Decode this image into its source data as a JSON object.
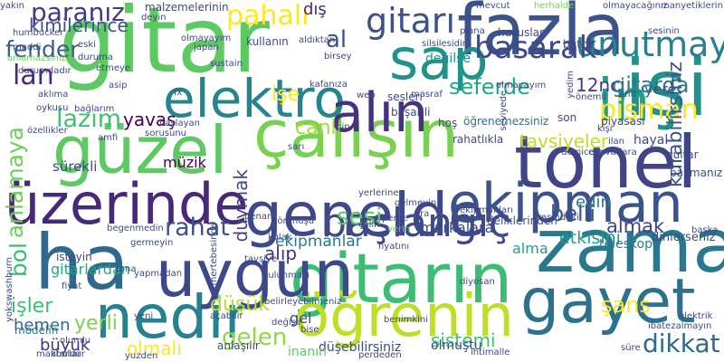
{
  "words": [
    {
      "text": "gitar",
      "color": "#5ec962"
    },
    {
      "text": "gitarın",
      "color": "#3dbc74"
    },
    {
      "text": "zaman",
      "color": "#2a788e"
    },
    {
      "text": "fazla",
      "color": "#3b528b"
    },
    {
      "text": "üzerinde",
      "color": "#482878"
    },
    {
      "text": "ha",
      "color": "#31688e"
    },
    {
      "text": "çalışın",
      "color": "#7ad151"
    },
    {
      "text": "güzel",
      "color": "#5ec962"
    },
    {
      "text": "genelde",
      "color": "#3e4989"
    },
    {
      "text": "ekipman",
      "color": "#3b528b"
    },
    {
      "text": "tonel",
      "color": "#414487"
    },
    {
      "text": "gayet",
      "color": "#2c728e"
    },
    {
      "text": "öğrenin",
      "color": "#bddf26"
    },
    {
      "text": "nedir",
      "color": "#26828e"
    },
    {
      "text": "uygun",
      "color": "#3e4989"
    },
    {
      "text": "elektro",
      "color": "#25858e"
    },
    {
      "text": "alın",
      "color": "#46327e"
    },
    {
      "text": "sap",
      "color": "#21918c"
    },
    {
      "text": "işi",
      "color": "#21918c"
    },
    {
      "text": "in",
      "color": "#1f9e89"
    },
    {
      "text": "başlangıç",
      "color": "#3e4989"
    },
    {
      "text": "gitarı",
      "color": "#3b528b"
    },
    {
      "text": "unutmayın",
      "color": "#26828e"
    },
    {
      "text": "basarak",
      "color": "#3e4989"
    },
    {
      "text": "pahalı",
      "color": "#fde725"
    },
    {
      "text": "paranız",
      "color": "#443a83"
    },
    {
      "text": "kimilerince",
      "color": "#3b528b"
    },
    {
      "text": "fender",
      "color": "#355f8d"
    },
    {
      "text": "lan",
      "color": "#482878"
    },
    {
      "text": "lazım",
      "color": "#44bf70"
    },
    {
      "text": "yavaş",
      "color": "#440154"
    },
    {
      "text": "anlamaya",
      "color": "#6ece58"
    },
    {
      "text": "bol",
      "color": "#3dbc74"
    },
    {
      "text": "müzik",
      "color": "#440154"
    },
    {
      "text": "duymak",
      "color": "#414487"
    },
    {
      "text": "rahat",
      "color": "#3b528b"
    },
    {
      "text": "canlı",
      "color": "#a0da39"
    },
    {
      "text": "seferde",
      "color": "#22a884"
    },
    {
      "text": "tavsiyeler",
      "color": "#bddf26"
    },
    {
      "text": "pişman",
      "color": "#fde725"
    },
    {
      "text": "12nci",
      "color": "#443a83"
    },
    {
      "text": "gitarda",
      "color": "#2a788e"
    },
    {
      "text": "kurabilirsiniz",
      "color": "#3b528b"
    },
    {
      "text": "belli",
      "color": "#3b528b"
    },
    {
      "text": "edin",
      "color": "#2a788e"
    },
    {
      "text": "almak",
      "color": "#414487"
    },
    {
      "text": "etkisini",
      "color": "#1f9e89"
    },
    {
      "text": "şans",
      "color": "#fde725"
    },
    {
      "text": "dikkat",
      "color": "#31688e"
    },
    {
      "text": "sistemi",
      "color": "#44bf70"
    },
    {
      "text": "gelen",
      "color": "#8fd744"
    },
    {
      "text": "düşük",
      "color": "#b5de2b"
    },
    {
      "text": "olmalı",
      "color": "#fde725"
    },
    {
      "text": "büyük",
      "color": "#46327e"
    },
    {
      "text": "işler",
      "color": "#3dbc74"
    },
    {
      "text": "hemen",
      "color": "#31688e"
    },
    {
      "text": "yerli",
      "color": "#7ad151"
    },
    {
      "text": "sesi",
      "color": "#5ec962"
    },
    {
      "text": "ekipmanlar",
      "color": "#2a788e"
    },
    {
      "text": "alıp",
      "color": "#46327e"
    },
    {
      "text": "al",
      "color": "#3b528b"
    },
    {
      "text": "dış",
      "color": "#482878"
    },
    {
      "text": "işe",
      "color": "#fde725"
    },
    {
      "text": "yere",
      "color": "#3b528b"
    },
    {
      "text": "değilse",
      "color": "#21918c"
    },
    {
      "text": "sürekli",
      "color": "#3e4989"
    },
    {
      "text": "gitarlardan",
      "color": "#22a884"
    },
    {
      "text": "markalara",
      "color": "#3e4989"
    },
    {
      "text": "alma",
      "color": "#1f9e89"
    },
    {
      "text": "teleskop",
      "color": "#2a788e"
    },
    {
      "text": "dinlerseniz",
      "color": "#3e4989"
    },
    {
      "text": "gel",
      "color": "#3e4989"
    },
    {
      "text": "modelin",
      "color": "#2c728e"
    },
    {
      "text": "olmuştu",
      "color": "#3e4989"
    },
    {
      "text": "düşebilirsiniz",
      "color": "#3e4989"
    },
    {
      "text": "anlaşılır",
      "color": "#3e4989"
    },
    {
      "text": "inanın",
      "color": "#5ec962"
    },
    {
      "text": "hayal",
      "color": "#3e4989"
    },
    {
      "text": "guitar",
      "color": "#3e4989"
    },
    {
      "text": "bakmanız",
      "color": "#3e4989"
    },
    {
      "text": "sesleri",
      "color": "#3e4989"
    },
    {
      "text": "başarili",
      "color": "#3e4989"
    },
    {
      "text": "hoş",
      "color": "#3e4989"
    },
    {
      "text": "rahatlıkla",
      "color": "#3e4989"
    },
    {
      "text": "öğrenemezsiniz",
      "color": "#2c728e"
    },
    {
      "text": "piyasası",
      "color": "#3e4989"
    },
    {
      "text": "son",
      "color": "#3e4989"
    },
    {
      "text": "hususlar",
      "color": "#3e4989"
    },
    {
      "text": "bütçe",
      "color": "#3e4989"
    },
    {
      "text": "malzemelerinin",
      "color": "#3e4989"
    },
    {
      "text": "mevcut",
      "color": "#3e4989"
    },
    {
      "text": "herhalde",
      "color": "#7ad151"
    },
    {
      "text": "olmayacağınız",
      "color": "#3e4989"
    },
    {
      "text": "manyetiklerin",
      "color": "#3e4989"
    },
    {
      "text": "humbucker",
      "color": "#3e4989"
    },
    {
      "text": "maddi",
      "color": "#3e4989"
    },
    {
      "text": "anlamazsınız",
      "color": "#6ece58"
    },
    {
      "text": "durumdadır",
      "color": "#3e4989"
    },
    {
      "text": "aklıma",
      "color": "#3e4989"
    },
    {
      "text": "oykusu",
      "color": "#3e4989"
    },
    {
      "text": "bağlarım",
      "color": "#3e4989"
    },
    {
      "text": "özellikler",
      "color": "#3e4989"
    },
    {
      "text": "begenmedin",
      "color": "#3e4989"
    },
    {
      "text": "germeyin",
      "color": "#3e4989"
    },
    {
      "text": "olmayayım",
      "color": "#3e4989"
    },
    {
      "text": "kullanın",
      "color": "#3e4989"
    },
    {
      "text": "aldıktan",
      "color": "#3e4989"
    },
    {
      "text": "japan",
      "color": "#3e4989"
    },
    {
      "text": "sustain",
      "color": "#3e4989"
    },
    {
      "text": "kafanıza",
      "color": "#3e4989"
    },
    {
      "text": "masraf",
      "color": "#3e4989"
    },
    {
      "text": "seviyede",
      "color": "#3e4989"
    },
    {
      "text": "önemli",
      "color": "#3e4989"
    },
    {
      "text": "anfi",
      "color": "#3e4989"
    },
    {
      "text": "kişi",
      "color": "#3e4989"
    },
    {
      "text": "çin",
      "color": "#3e4989"
    },
    {
      "text": "sarı",
      "color": "#3e4989"
    },
    {
      "text": "yerlerine",
      "color": "#3e4989"
    },
    {
      "text": "ara",
      "color": "#3e4989"
    },
    {
      "text": "verin",
      "color": "#5ec962"
    },
    {
      "text": "deliklerinden",
      "color": "#3e4989"
    },
    {
      "text": "ekipmanları",
      "color": "#3e4989"
    },
    {
      "text": "fiyatını",
      "color": "#3e4989"
    },
    {
      "text": "tavsiye",
      "color": "#3e4989"
    },
    {
      "text": "isteyin",
      "color": "#3e4989"
    },
    {
      "text": "çalın",
      "color": "#3e4989"
    },
    {
      "text": "tona",
      "color": "#3e4989"
    },
    {
      "text": "yapmadan",
      "color": "#3e4989"
    },
    {
      "text": "penam",
      "color": "#3e4989"
    },
    {
      "text": "bulunması",
      "color": "#3e4989"
    },
    {
      "text": "diyosan",
      "color": "#3e4989"
    },
    {
      "text": "belirleyebilmeniz",
      "color": "#3e4989"
    },
    {
      "text": "benimkini",
      "color": "#3e4989"
    },
    {
      "text": "perdeden",
      "color": "#3e4989"
    },
    {
      "text": "bise",
      "color": "#3e4989"
    },
    {
      "text": "ihtimalle",
      "color": "#3e4989"
    },
    {
      "text": "makbuldür",
      "color": "#3e4989"
    },
    {
      "text": "yuzden",
      "color": "#3e4989"
    },
    {
      "text": "açabilir",
      "color": "#3e4989"
    },
    {
      "text": "değişir",
      "color": "#3e4989"
    },
    {
      "text": "atarlar",
      "color": "#3e4989"
    },
    {
      "text": "olumlu",
      "color": "#3e4989"
    },
    {
      "text": "yokswashburn",
      "color": "#3e4989"
    },
    {
      "text": "fiyat",
      "color": "#3e4989"
    },
    {
      "text": "yeni",
      "color": "#3e4989"
    },
    {
      "text": "amfi",
      "color": "#3e4989"
    },
    {
      "text": "asip",
      "color": "#3e4989"
    },
    {
      "text": "eski",
      "color": "#3e4989"
    },
    {
      "text": "duruma",
      "color": "#3e4989"
    },
    {
      "text": "etmeye",
      "color": "#3e4989"
    },
    {
      "text": "yakın",
      "color": "#3e4989"
    },
    {
      "text": "elektrik",
      "color": "#3e4989"
    },
    {
      "text": "ibatezalmayın",
      "color": "#3e4989"
    },
    {
      "text": "süre",
      "color": "#3e4989"
    },
    {
      "text": "başka",
      "color": "#3e4989"
    },
    {
      "text": "arasındaki",
      "color": "#3e4989"
    },
    {
      "text": "sesinin",
      "color": "#3e4989"
    },
    {
      "text": "plana",
      "color": "#3e4989"
    },
    {
      "text": "silsilesidir",
      "color": "#3e4989"
    },
    {
      "text": "birsey",
      "color": "#3e4989"
    },
    {
      "text": "demicem",
      "color": "#3e4989"
    },
    {
      "text": "edevatlara",
      "color": "#3e4989"
    },
    {
      "text": "ilan",
      "color": "#3e4989"
    },
    {
      "text": "görünüşü",
      "color": "#3e4989"
    },
    {
      "text": "kulak",
      "color": "#3e4989"
    },
    {
      "text": "perde",
      "color": "#3e4989"
    },
    {
      "text": "gelmeyin",
      "color": "#3e4989"
    },
    {
      "text": "olmayayım",
      "color": "#3e4989"
    },
    {
      "text": "mertebesinde",
      "color": "#3e4989"
    },
    {
      "text": "sorusunu",
      "color": "#3e4989"
    },
    {
      "text": "deyin",
      "color": "#3e4989"
    },
    {
      "text": "başlayan",
      "color": "#3e4989"
    },
    {
      "text": "web",
      "color": "#3e4989"
    },
    {
      "text": "yedim",
      "color": "#3e4989"
    },
    {
      "text": "fx",
      "color": "#3e4989"
    }
  ]
}
